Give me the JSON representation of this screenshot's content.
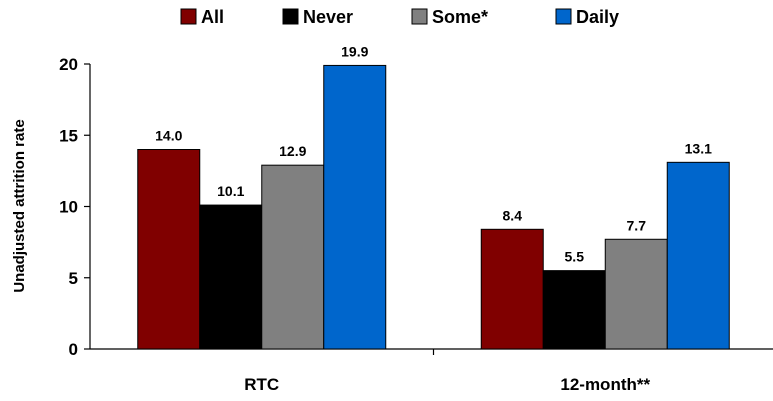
{
  "chart_data": {
    "type": "bar",
    "title": "",
    "xlabel": "",
    "ylabel": "Unadjusted attrition rate",
    "categories": [
      "RTC",
      "12-month**"
    ],
    "series": [
      {
        "name": "All",
        "values": [
          14.0,
          8.4
        ],
        "color": "#800000"
      },
      {
        "name": "Never",
        "values": [
          10.1,
          5.5
        ],
        "color": "#000000"
      },
      {
        "name": "Some*",
        "values": [
          12.9,
          7.7
        ],
        "color": "#808080"
      },
      {
        "name": "Daily",
        "values": [
          19.9,
          13.1
        ],
        "color": "#0066CC"
      }
    ],
    "ylim": [
      0,
      20
    ],
    "yticks": [
      "0",
      "5",
      "10",
      "15",
      "20"
    ],
    "legend_position": "top",
    "grid": false
  }
}
